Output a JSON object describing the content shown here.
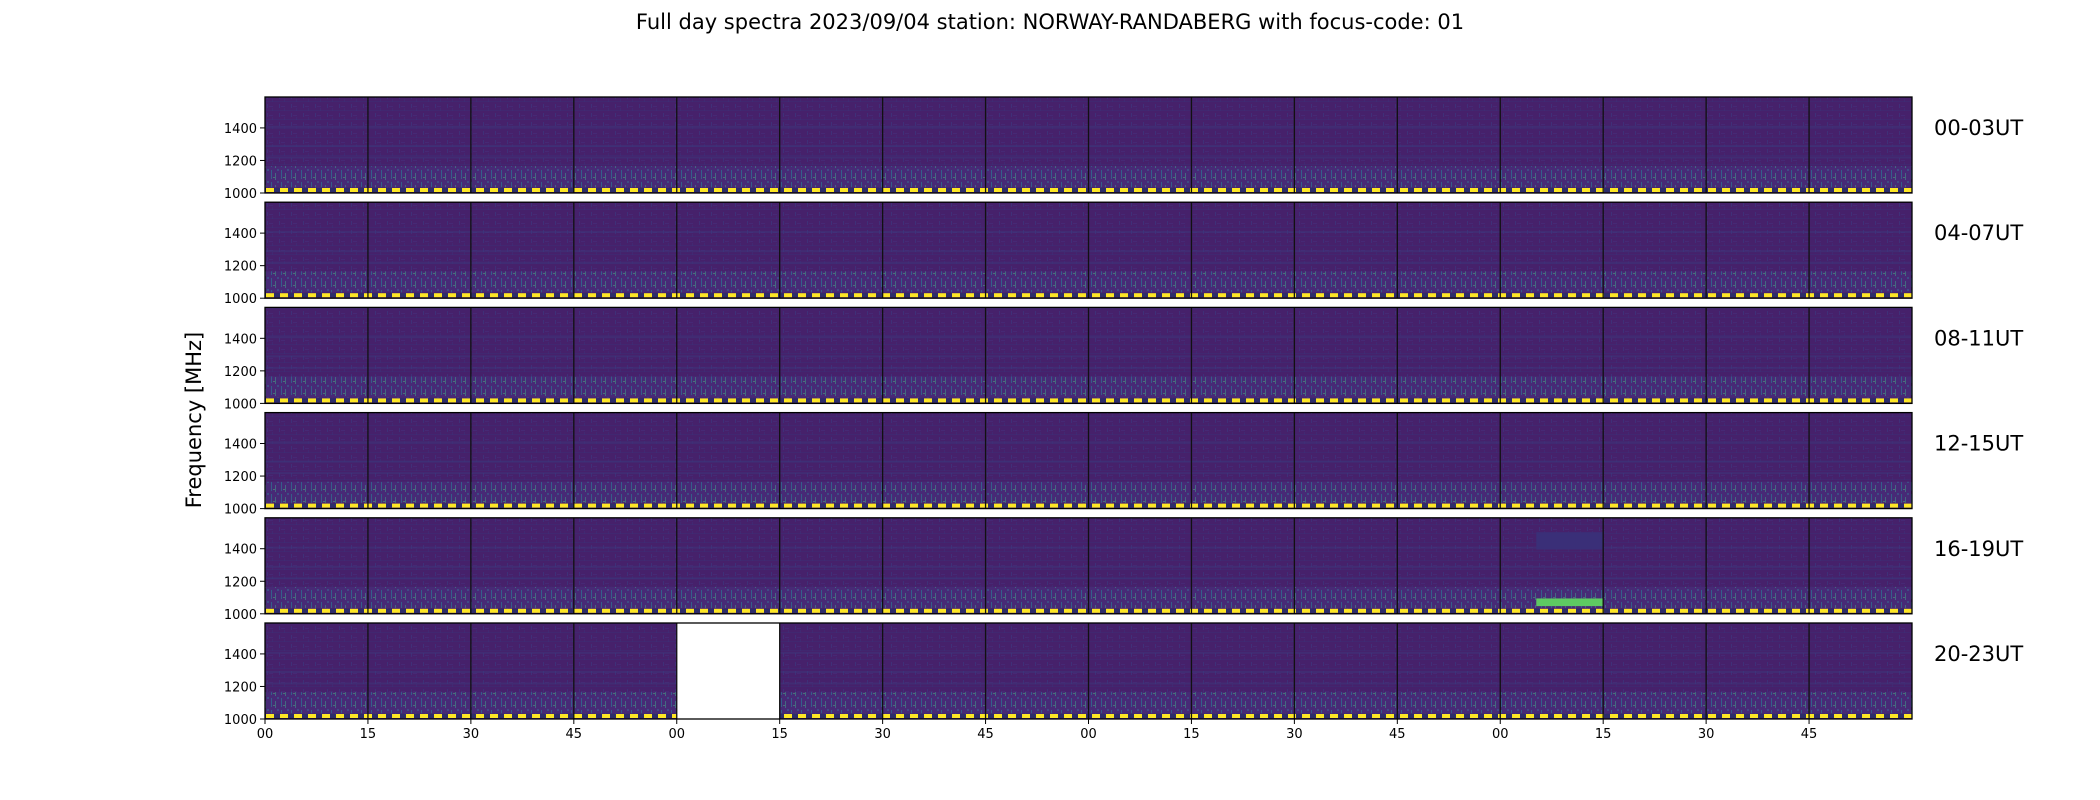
{
  "chart_data": {
    "type": "heatmap",
    "title": "Full day spectra 2023/09/04 station: NORWAY-RANDABERG with focus-code: 01",
    "ylabel": "Frequency [MHz]",
    "xlabel": "",
    "y_ticks": [
      "1000",
      "1200",
      "1400"
    ],
    "ylim": [
      1000,
      1590
    ],
    "x_tick_labels": [
      "00",
      "15",
      "30",
      "45",
      "00",
      "15",
      "30",
      "45",
      "00",
      "15",
      "30",
      "45",
      "00",
      "15",
      "30",
      "45"
    ],
    "rows": [
      {
        "label": "00-03UT",
        "missing_panels": [],
        "bright_panels": []
      },
      {
        "label": "04-07UT",
        "missing_panels": [],
        "bright_panels": []
      },
      {
        "label": "08-11UT",
        "missing_panels": [],
        "bright_panels": []
      },
      {
        "label": "12-15UT",
        "missing_panels": [],
        "bright_panels": []
      },
      {
        "label": "16-19UT",
        "missing_panels": [],
        "bright_panels": [
          12
        ]
      },
      {
        "label": "20-23UT",
        "missing_panels": [
          4
        ],
        "bright_panels": []
      }
    ],
    "panels_per_row": 16,
    "colormap": "viridis",
    "colors": {
      "background_low": "#46216b",
      "mid": "#2a788e",
      "high": "#7ad151",
      "dashed_line_yellow": "#fde725",
      "dashed_line_dark": "#2c2d6a"
    }
  }
}
